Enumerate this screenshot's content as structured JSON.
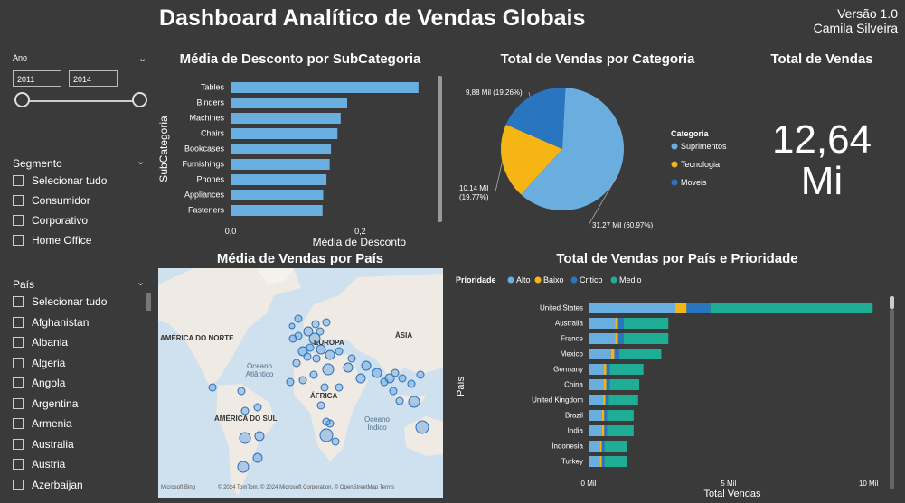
{
  "header": {
    "title": "Dashboard Analítico de Vendas Globais",
    "version": "Versão 1.0",
    "author": "Camila Silveira"
  },
  "filters": {
    "year": {
      "title": "Ano",
      "from": "2011",
      "to": "2014"
    },
    "segment": {
      "title": "Segmento",
      "items": [
        "Selecionar tudo",
        "Consumidor",
        "Corporativo",
        "Home Office"
      ]
    },
    "country": {
      "title": "País",
      "items": [
        "Selecionar tudo",
        "Afghanistan",
        "Albania",
        "Algeria",
        "Angola",
        "Argentina",
        "Armenia",
        "Australia",
        "Austria",
        "Azerbaijan"
      ]
    }
  },
  "colors": {
    "background": "#3a3a3a",
    "alto": "#6aaee0",
    "baixo": "#f5b515",
    "critico": "#2a75c0",
    "medio": "#1fae95"
  },
  "discount_panel": {
    "title": "Média de Desconto por SubCategoria"
  },
  "category_panel": {
    "title": "Total de Vendas por Categoria"
  },
  "total_panel": {
    "title": "Total de Vendas",
    "value_line1": "12,64",
    "value_line2": "Mi"
  },
  "map_panel": {
    "title": "Média de Vendas por País",
    "labels": {
      "north_america": "AMÉRICA DO NORTE",
      "europe": "EUROPA",
      "asia": "ÁSIA",
      "africa": "ÁFRICA",
      "south_america": "AMÉRICA DO SUL",
      "atlantic": "Oceano Atlântico",
      "indian": "Oceano Índico"
    },
    "attribution": "© 2024 TomTom, © 2024 Microsoft Corporation, © OpenStreetMap  Terms",
    "logo": "Microsoft Bing"
  },
  "country_panel": {
    "title": "Total de Vendas por País e Prioridade"
  },
  "chart_data": [
    {
      "type": "bar",
      "title": "Média de Desconto por SubCategoria",
      "categories": [
        "Tables",
        "Binders",
        "Machines",
        "Chairs",
        "Bookcases",
        "Furnishings",
        "Phones",
        "Appliances",
        "Fasteners"
      ],
      "values": [
        0.29,
        0.18,
        0.17,
        0.165,
        0.155,
        0.153,
        0.148,
        0.143,
        0.142
      ],
      "xlabel": "Média de Desconto",
      "ylabel": "SubCategoria",
      "xlim": [
        0,
        0.3
      ],
      "xticks": [
        "0,0",
        "0,2"
      ]
    },
    {
      "type": "pie",
      "title": "Total de Vendas por Categoria",
      "legend_title": "Categoria",
      "slices": [
        {
          "name": "Suprimentos",
          "value": 60.97,
          "label": "31,27 Mil (60,97%)",
          "color": "#6aaee0"
        },
        {
          "name": "Tecnologia",
          "value": 19.77,
          "label": "10,14 Mil (19,77%)",
          "color": "#f5b515"
        },
        {
          "name": "Moveis",
          "value": 19.26,
          "label": "9,88 Mil (19,26%)",
          "color": "#2a75c0"
        }
      ]
    },
    {
      "type": "bar",
      "stacked": true,
      "title": "Total de Vendas por País e Prioridade",
      "legend_title": "Prioridade",
      "categories": [
        "United States",
        "Australia",
        "France",
        "Mexico",
        "Germany",
        "China",
        "United Kingdom",
        "Brazil",
        "India",
        "Indonesia",
        "Turkey"
      ],
      "series": [
        {
          "name": "Alto",
          "values": [
            3.1,
            0.95,
            0.95,
            0.8,
            0.55,
            0.55,
            0.52,
            0.48,
            0.48,
            0.4,
            0.4
          ]
        },
        {
          "name": "Baixo",
          "values": [
            0.4,
            0.1,
            0.1,
            0.12,
            0.08,
            0.08,
            0.08,
            0.08,
            0.08,
            0.07,
            0.07
          ]
        },
        {
          "name": "Critico",
          "values": [
            0.85,
            0.2,
            0.2,
            0.18,
            0.13,
            0.13,
            0.12,
            0.1,
            0.1,
            0.1,
            0.1
          ]
        },
        {
          "name": "Medio",
          "values": [
            5.8,
            1.6,
            1.6,
            1.5,
            1.2,
            1.05,
            1.05,
            0.95,
            0.95,
            0.8,
            0.8
          ]
        }
      ],
      "xlabel": "Total Vendas",
      "ylabel": "País",
      "xlim": [
        0,
        10.4
      ],
      "xticks": [
        {
          "v": 0,
          "label": "0 Mil"
        },
        {
          "v": 5,
          "label": "5 Mil"
        },
        {
          "v": 10,
          "label": "10 Mil"
        }
      ]
    }
  ]
}
